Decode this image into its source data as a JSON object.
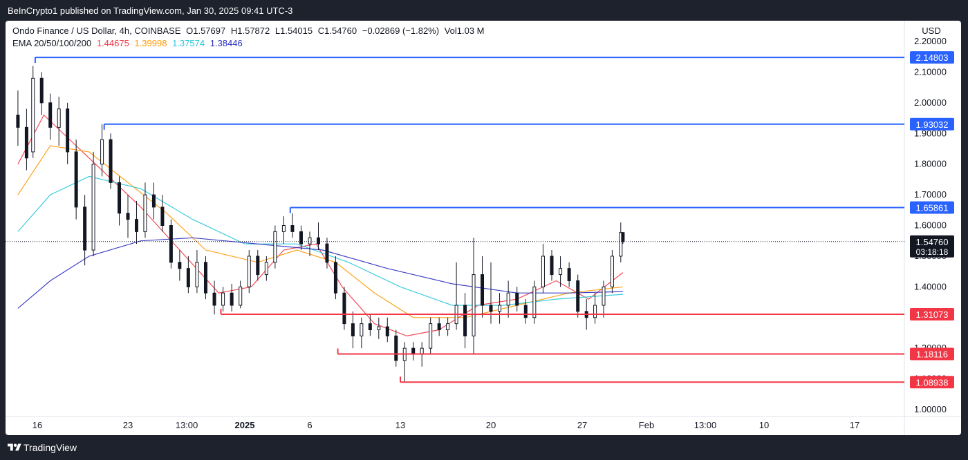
{
  "header": {
    "publisher_text": "BeInCrypto1 published on TradingView.com, Jan 30, 2025 09:41 UTC-3"
  },
  "legend": {
    "symbol": "Ondo Finance / US Dollar, 4h, COINBASE",
    "open": "O1.57697",
    "high": "H1.57872",
    "low": "L1.54015",
    "close": "C1.54760",
    "change": "−0.02869 (−1.82%)",
    "volume": "Vol1.03 M",
    "ema_label": "EMA 20/50/100/200",
    "ema_values": [
      "1.44675",
      "1.39998",
      "1.37574",
      "1.38446"
    ]
  },
  "currency_label": "USD",
  "footer": {
    "brand": "TradingView"
  },
  "colors": {
    "bg_dark": "#1e222d",
    "resistance": "#2962ff",
    "support": "#f23645",
    "ema20": "#f23645",
    "ema50": "#ff9800",
    "ema100": "#26c6da",
    "ema200": "#2a2ebd",
    "candle": "#131722",
    "last_price_bg": "#131722"
  },
  "chart_data": {
    "type": "candlestick",
    "instrument": "Ondo Finance / US Dollar",
    "interval": "4h",
    "ylim": [
      0.96,
      2.3
    ],
    "y_ticks": [
      "1.00000",
      "1.10000",
      "1.20000",
      "1.30000",
      "1.40000",
      "1.50000",
      "1.60000",
      "1.70000",
      "1.80000",
      "1.90000",
      "2.00000",
      "2.10000",
      "2.20000"
    ],
    "x_ticks": [
      {
        "label": "16",
        "bold": false
      },
      {
        "label": "23",
        "bold": false
      },
      {
        "label": "13:00",
        "bold": false
      },
      {
        "label": "2025",
        "bold": true
      },
      {
        "label": "6",
        "bold": false
      },
      {
        "label": "13",
        "bold": false
      },
      {
        "label": "20",
        "bold": false
      },
      {
        "label": "27",
        "bold": false
      },
      {
        "label": "Feb",
        "bold": false
      },
      {
        "label": "13:00",
        "bold": false
      },
      {
        "label": "10",
        "bold": false
      },
      {
        "label": "17",
        "bold": false
      }
    ],
    "x_tick_dates": [
      "2024-12-16",
      "2024-12-23",
      "2024-12-27 13:00",
      "2025-01-01",
      "2025-01-06",
      "2025-01-13",
      "2025-01-20",
      "2025-01-27",
      "2025-02-01",
      "2025-02-04 13:00",
      "2025-02-10",
      "2025-02-17"
    ],
    "last_price": "1.54760",
    "countdown": "03:18:18",
    "levels": [
      {
        "value": 2.14803,
        "label": "2.14803",
        "kind": "resistance",
        "from_date": "2024-12-15 20:00"
      },
      {
        "value": 1.93032,
        "label": "1.93032",
        "kind": "resistance",
        "from_date": "2024-12-21 04:00"
      },
      {
        "value": 1.65861,
        "label": "1.65861",
        "kind": "resistance",
        "from_date": "2025-01-04 12:00"
      },
      {
        "value": 1.31073,
        "label": "1.31073",
        "kind": "support",
        "from_date": "2024-12-30 04:00"
      },
      {
        "value": 1.18116,
        "label": "1.18116",
        "kind": "support",
        "from_date": "2025-01-08 04:00"
      },
      {
        "value": 1.08938,
        "label": "1.08938",
        "kind": "support",
        "from_date": "2025-01-13 00:00"
      }
    ],
    "candles": [
      {
        "date": "2024-12-14 12:00",
        "o": 1.96,
        "h": 2.04,
        "l": 1.86,
        "c": 1.92
      },
      {
        "date": "2024-12-15 04:00",
        "o": 1.92,
        "h": 1.98,
        "l": 1.78,
        "c": 1.82
      },
      {
        "date": "2024-12-15 16:00",
        "o": 1.84,
        "h": 2.12,
        "l": 1.82,
        "c": 2.08
      },
      {
        "date": "2024-12-16 08:00",
        "o": 2.08,
        "h": 2.1,
        "l": 1.96,
        "c": 2.0
      },
      {
        "date": "2024-12-17 00:00",
        "o": 2.0,
        "h": 2.03,
        "l": 1.88,
        "c": 1.92
      },
      {
        "date": "2024-12-17 16:00",
        "o": 1.92,
        "h": 2.02,
        "l": 1.86,
        "c": 1.98
      },
      {
        "date": "2024-12-18 08:00",
        "o": 1.98,
        "h": 2.0,
        "l": 1.8,
        "c": 1.84
      },
      {
        "date": "2024-12-19 00:00",
        "o": 1.84,
        "h": 1.88,
        "l": 1.62,
        "c": 1.66
      },
      {
        "date": "2024-12-19 16:00",
        "o": 1.66,
        "h": 1.7,
        "l": 1.47,
        "c": 1.52
      },
      {
        "date": "2024-12-20 08:00",
        "o": 1.52,
        "h": 1.84,
        "l": 1.5,
        "c": 1.8
      },
      {
        "date": "2024-12-21 00:00",
        "o": 1.8,
        "h": 1.93,
        "l": 1.76,
        "c": 1.88
      },
      {
        "date": "2024-12-21 16:00",
        "o": 1.88,
        "h": 1.9,
        "l": 1.72,
        "c": 1.74
      },
      {
        "date": "2024-12-22 08:00",
        "o": 1.74,
        "h": 1.76,
        "l": 1.6,
        "c": 1.64
      },
      {
        "date": "2024-12-23 00:00",
        "o": 1.64,
        "h": 1.7,
        "l": 1.56,
        "c": 1.62
      },
      {
        "date": "2024-12-23 16:00",
        "o": 1.62,
        "h": 1.68,
        "l": 1.54,
        "c": 1.58
      },
      {
        "date": "2024-12-24 08:00",
        "o": 1.58,
        "h": 1.74,
        "l": 1.56,
        "c": 1.7
      },
      {
        "date": "2024-12-25 00:00",
        "o": 1.7,
        "h": 1.74,
        "l": 1.62,
        "c": 1.66
      },
      {
        "date": "2024-12-25 16:00",
        "o": 1.66,
        "h": 1.7,
        "l": 1.58,
        "c": 1.6
      },
      {
        "date": "2024-12-26 08:00",
        "o": 1.6,
        "h": 1.62,
        "l": 1.46,
        "c": 1.48
      },
      {
        "date": "2024-12-27 00:00",
        "o": 1.48,
        "h": 1.52,
        "l": 1.42,
        "c": 1.46
      },
      {
        "date": "2024-12-27 16:00",
        "o": 1.46,
        "h": 1.5,
        "l": 1.38,
        "c": 1.4
      },
      {
        "date": "2024-12-28 08:00",
        "o": 1.4,
        "h": 1.52,
        "l": 1.38,
        "c": 1.48
      },
      {
        "date": "2024-12-29 00:00",
        "o": 1.48,
        "h": 1.5,
        "l": 1.36,
        "c": 1.38
      },
      {
        "date": "2024-12-29 16:00",
        "o": 1.38,
        "h": 1.42,
        "l": 1.31,
        "c": 1.34
      },
      {
        "date": "2024-12-30 08:00",
        "o": 1.34,
        "h": 1.4,
        "l": 1.32,
        "c": 1.38
      },
      {
        "date": "2024-12-31 00:00",
        "o": 1.38,
        "h": 1.41,
        "l": 1.32,
        "c": 1.34
      },
      {
        "date": "2024-12-31 16:00",
        "o": 1.34,
        "h": 1.42,
        "l": 1.33,
        "c": 1.4
      },
      {
        "date": "2025-01-01 08:00",
        "o": 1.4,
        "h": 1.52,
        "l": 1.38,
        "c": 1.5
      },
      {
        "date": "2025-01-02 00:00",
        "o": 1.5,
        "h": 1.52,
        "l": 1.42,
        "c": 1.44
      },
      {
        "date": "2025-01-02 16:00",
        "o": 1.44,
        "h": 1.5,
        "l": 1.42,
        "c": 1.48
      },
      {
        "date": "2025-01-03 08:00",
        "o": 1.48,
        "h": 1.6,
        "l": 1.46,
        "c": 1.58
      },
      {
        "date": "2025-01-04 00:00",
        "o": 1.58,
        "h": 1.63,
        "l": 1.54,
        "c": 1.6
      },
      {
        "date": "2025-01-04 16:00",
        "o": 1.6,
        "h": 1.64,
        "l": 1.56,
        "c": 1.58
      },
      {
        "date": "2025-01-05 08:00",
        "o": 1.58,
        "h": 1.6,
        "l": 1.52,
        "c": 1.54
      },
      {
        "date": "2025-01-06 00:00",
        "o": 1.54,
        "h": 1.58,
        "l": 1.5,
        "c": 1.56
      },
      {
        "date": "2025-01-06 16:00",
        "o": 1.56,
        "h": 1.61,
        "l": 1.52,
        "c": 1.54
      },
      {
        "date": "2025-01-07 08:00",
        "o": 1.54,
        "h": 1.56,
        "l": 1.46,
        "c": 1.48
      },
      {
        "date": "2025-01-08 00:00",
        "o": 1.48,
        "h": 1.5,
        "l": 1.36,
        "c": 1.38
      },
      {
        "date": "2025-01-08 16:00",
        "o": 1.38,
        "h": 1.4,
        "l": 1.26,
        "c": 1.28
      },
      {
        "date": "2025-01-09 08:00",
        "o": 1.28,
        "h": 1.32,
        "l": 1.2,
        "c": 1.24
      },
      {
        "date": "2025-01-10 00:00",
        "o": 1.24,
        "h": 1.3,
        "l": 1.2,
        "c": 1.28
      },
      {
        "date": "2025-01-10 16:00",
        "o": 1.28,
        "h": 1.31,
        "l": 1.24,
        "c": 1.26
      },
      {
        "date": "2025-01-11 08:00",
        "o": 1.26,
        "h": 1.3,
        "l": 1.23,
        "c": 1.27
      },
      {
        "date": "2025-01-12 00:00",
        "o": 1.27,
        "h": 1.3,
        "l": 1.22,
        "c": 1.24
      },
      {
        "date": "2025-01-12 16:00",
        "o": 1.24,
        "h": 1.26,
        "l": 1.14,
        "c": 1.16
      },
      {
        "date": "2025-01-13 08:00",
        "o": 1.16,
        "h": 1.22,
        "l": 1.09,
        "c": 1.2
      },
      {
        "date": "2025-01-14 00:00",
        "o": 1.2,
        "h": 1.22,
        "l": 1.16,
        "c": 1.18
      },
      {
        "date": "2025-01-14 16:00",
        "o": 1.18,
        "h": 1.22,
        "l": 1.14,
        "c": 1.2
      },
      {
        "date": "2025-01-15 08:00",
        "o": 1.2,
        "h": 1.3,
        "l": 1.18,
        "c": 1.28
      },
      {
        "date": "2025-01-16 00:00",
        "o": 1.28,
        "h": 1.3,
        "l": 1.24,
        "c": 1.26
      },
      {
        "date": "2025-01-16 16:00",
        "o": 1.26,
        "h": 1.3,
        "l": 1.24,
        "c": 1.28
      },
      {
        "date": "2025-01-17 08:00",
        "o": 1.28,
        "h": 1.48,
        "l": 1.26,
        "c": 1.34
      },
      {
        "date": "2025-01-18 00:00",
        "o": 1.34,
        "h": 1.38,
        "l": 1.2,
        "c": 1.24
      },
      {
        "date": "2025-01-18 16:00",
        "o": 1.24,
        "h": 1.56,
        "l": 1.18,
        "c": 1.44
      },
      {
        "date": "2025-01-19 08:00",
        "o": 1.44,
        "h": 1.5,
        "l": 1.3,
        "c": 1.34
      },
      {
        "date": "2025-01-20 00:00",
        "o": 1.34,
        "h": 1.48,
        "l": 1.28,
        "c": 1.32
      },
      {
        "date": "2025-01-20 16:00",
        "o": 1.32,
        "h": 1.38,
        "l": 1.28,
        "c": 1.34
      },
      {
        "date": "2025-01-21 08:00",
        "o": 1.34,
        "h": 1.42,
        "l": 1.3,
        "c": 1.38
      },
      {
        "date": "2025-01-22 00:00",
        "o": 1.38,
        "h": 1.4,
        "l": 1.32,
        "c": 1.34
      },
      {
        "date": "2025-01-22 16:00",
        "o": 1.34,
        "h": 1.36,
        "l": 1.28,
        "c": 1.3
      },
      {
        "date": "2025-01-23 08:00",
        "o": 1.3,
        "h": 1.42,
        "l": 1.28,
        "c": 1.4
      },
      {
        "date": "2025-01-24 00:00",
        "o": 1.4,
        "h": 1.54,
        "l": 1.38,
        "c": 1.5
      },
      {
        "date": "2025-01-24 16:00",
        "o": 1.5,
        "h": 1.52,
        "l": 1.42,
        "c": 1.44
      },
      {
        "date": "2025-01-25 08:00",
        "o": 1.44,
        "h": 1.5,
        "l": 1.4,
        "c": 1.46
      },
      {
        "date": "2025-01-26 00:00",
        "o": 1.46,
        "h": 1.48,
        "l": 1.4,
        "c": 1.42
      },
      {
        "date": "2025-01-26 16:00",
        "o": 1.42,
        "h": 1.44,
        "l": 1.3,
        "c": 1.32
      },
      {
        "date": "2025-01-27 08:00",
        "o": 1.32,
        "h": 1.36,
        "l": 1.26,
        "c": 1.3
      },
      {
        "date": "2025-01-28 00:00",
        "o": 1.3,
        "h": 1.38,
        "l": 1.28,
        "c": 1.34
      },
      {
        "date": "2025-01-28 16:00",
        "o": 1.34,
        "h": 1.42,
        "l": 1.3,
        "c": 1.4
      },
      {
        "date": "2025-01-29 08:00",
        "o": 1.4,
        "h": 1.52,
        "l": 1.38,
        "c": 1.5
      },
      {
        "date": "2025-01-30 00:00",
        "o": 1.5,
        "h": 1.61,
        "l": 1.48,
        "c": 1.57697
      },
      {
        "date": "2025-01-30 04:00",
        "o": 1.57697,
        "h": 1.57872,
        "l": 1.54015,
        "c": 1.5476
      }
    ],
    "ema_series": [
      {
        "name": "EMA 20",
        "period": 20,
        "color": "#f23645"
      },
      {
        "name": "EMA 50",
        "period": 50,
        "color": "#ff9800"
      },
      {
        "name": "EMA 100",
        "period": 100,
        "color": "#26c6da"
      },
      {
        "name": "EMA 200",
        "period": 200,
        "color": "#2a2ebd"
      }
    ],
    "ema_paths": {
      "EMA 20": [
        [
          "2024-12-14 12:00",
          1.8
        ],
        [
          "2024-12-16 12:00",
          1.96
        ],
        [
          "2024-12-19 00:00",
          1.86
        ],
        [
          "2024-12-21 00:00",
          1.78
        ],
        [
          "2024-12-24 00:00",
          1.66
        ],
        [
          "2024-12-27 00:00",
          1.52
        ],
        [
          "2024-12-30 00:00",
          1.38
        ],
        [
          "2025-01-01 12:00",
          1.4
        ],
        [
          "2025-01-04 00:00",
          1.52
        ],
        [
          "2025-01-06 12:00",
          1.54
        ],
        [
          "2025-01-08 12:00",
          1.4
        ],
        [
          "2025-01-11 00:00",
          1.28
        ],
        [
          "2025-01-13 12:00",
          1.24
        ],
        [
          "2025-01-16 00:00",
          1.26
        ],
        [
          "2025-01-19 00:00",
          1.34
        ],
        [
          "2025-01-22 00:00",
          1.36
        ],
        [
          "2025-01-25 00:00",
          1.42
        ],
        [
          "2025-01-27 12:00",
          1.36
        ],
        [
          "2025-01-30 04:00",
          1.44675
        ]
      ],
      "EMA 50": [
        [
          "2024-12-14 12:00",
          1.7
        ],
        [
          "2024-12-17 00:00",
          1.86
        ],
        [
          "2024-12-20 00:00",
          1.84
        ],
        [
          "2024-12-23 00:00",
          1.74
        ],
        [
          "2024-12-26 00:00",
          1.64
        ],
        [
          "2024-12-29 00:00",
          1.52
        ],
        [
          "2025-01-02 00:00",
          1.48
        ],
        [
          "2025-01-05 00:00",
          1.52
        ],
        [
          "2025-01-08 00:00",
          1.48
        ],
        [
          "2025-01-11 00:00",
          1.38
        ],
        [
          "2025-01-14 00:00",
          1.3
        ],
        [
          "2025-01-18 00:00",
          1.3
        ],
        [
          "2025-01-22 00:00",
          1.34
        ],
        [
          "2025-01-26 00:00",
          1.38
        ],
        [
          "2025-01-30 04:00",
          1.39998
        ]
      ],
      "EMA 100": [
        [
          "2024-12-14 12:00",
          1.58
        ],
        [
          "2024-12-17 00:00",
          1.7
        ],
        [
          "2024-12-20 00:00",
          1.76
        ],
        [
          "2024-12-24 00:00",
          1.72
        ],
        [
          "2024-12-28 00:00",
          1.62
        ],
        [
          "2025-01-01 00:00",
          1.54
        ],
        [
          "2025-01-05 00:00",
          1.54
        ],
        [
          "2025-01-09 00:00",
          1.48
        ],
        [
          "2025-01-13 00:00",
          1.4
        ],
        [
          "2025-01-17 00:00",
          1.34
        ],
        [
          "2025-01-21 00:00",
          1.34
        ],
        [
          "2025-01-25 00:00",
          1.36
        ],
        [
          "2025-01-30 04:00",
          1.37574
        ]
      ],
      "EMA 200": [
        [
          "2024-12-14 12:00",
          1.33
        ],
        [
          "2024-12-17 00:00",
          1.42
        ],
        [
          "2024-12-20 00:00",
          1.5
        ],
        [
          "2024-12-24 00:00",
          1.55
        ],
        [
          "2024-12-28 00:00",
          1.56
        ],
        [
          "2025-01-02 00:00",
          1.54
        ],
        [
          "2025-01-07 00:00",
          1.52
        ],
        [
          "2025-01-12 00:00",
          1.46
        ],
        [
          "2025-01-17 00:00",
          1.41
        ],
        [
          "2025-01-22 00:00",
          1.38
        ],
        [
          "2025-01-26 00:00",
          1.38
        ],
        [
          "2025-01-30 04:00",
          1.38446
        ]
      ]
    }
  }
}
